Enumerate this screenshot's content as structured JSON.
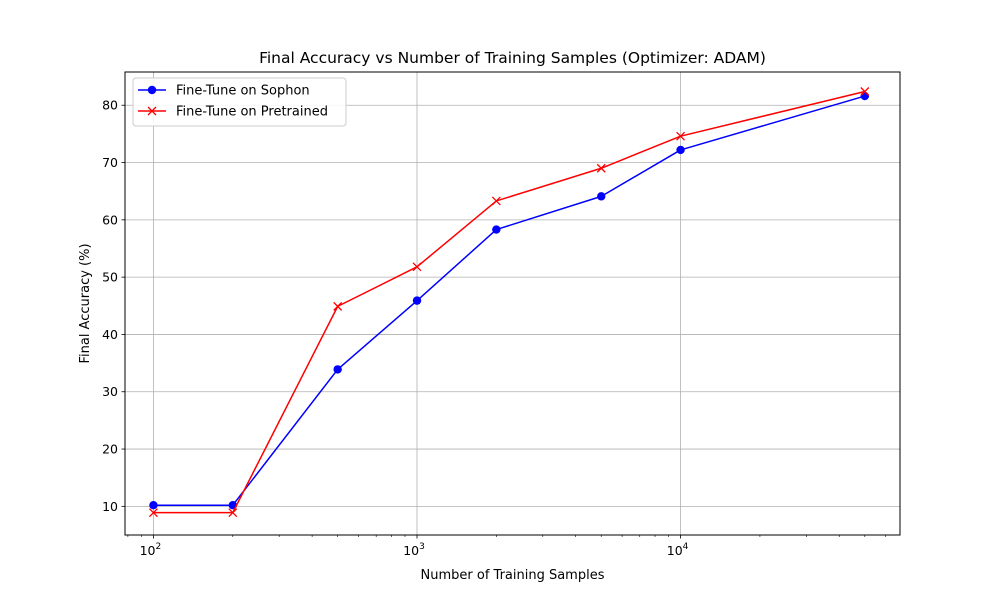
{
  "chart_data": {
    "type": "line",
    "title": "Final Accuracy vs Number of Training Samples (Optimizer: ADAM)",
    "xlabel": "Number of Training Samples",
    "ylabel": "Final Accuracy (%)",
    "xscale": "log",
    "xlim": [
      78,
      68000
    ],
    "ylim": [
      5.0,
      85.8
    ],
    "x": [
      100,
      200,
      500,
      1000,
      2000,
      5000,
      10000,
      50000
    ],
    "x_ticks": [
      {
        "value": 100,
        "base": "10",
        "exp": "2"
      },
      {
        "value": 1000,
        "base": "10",
        "exp": "3"
      },
      {
        "value": 10000,
        "base": "10",
        "exp": "4"
      }
    ],
    "y_ticks": [
      "10",
      "20",
      "30",
      "40",
      "50",
      "60",
      "70",
      "80"
    ],
    "grid": true,
    "legend_position": "top-left",
    "series": [
      {
        "name": "Fine-Tune on Sophon",
        "color": "#0000ff",
        "marker": "circle",
        "values": [
          10.2,
          10.2,
          33.9,
          45.9,
          58.3,
          64.1,
          72.2,
          81.6
        ]
      },
      {
        "name": "Fine-Tune on Pretrained",
        "color": "#ff0000",
        "marker": "x",
        "values": [
          8.9,
          8.9,
          44.9,
          51.8,
          63.3,
          69.0,
          74.6,
          82.4
        ]
      }
    ]
  }
}
